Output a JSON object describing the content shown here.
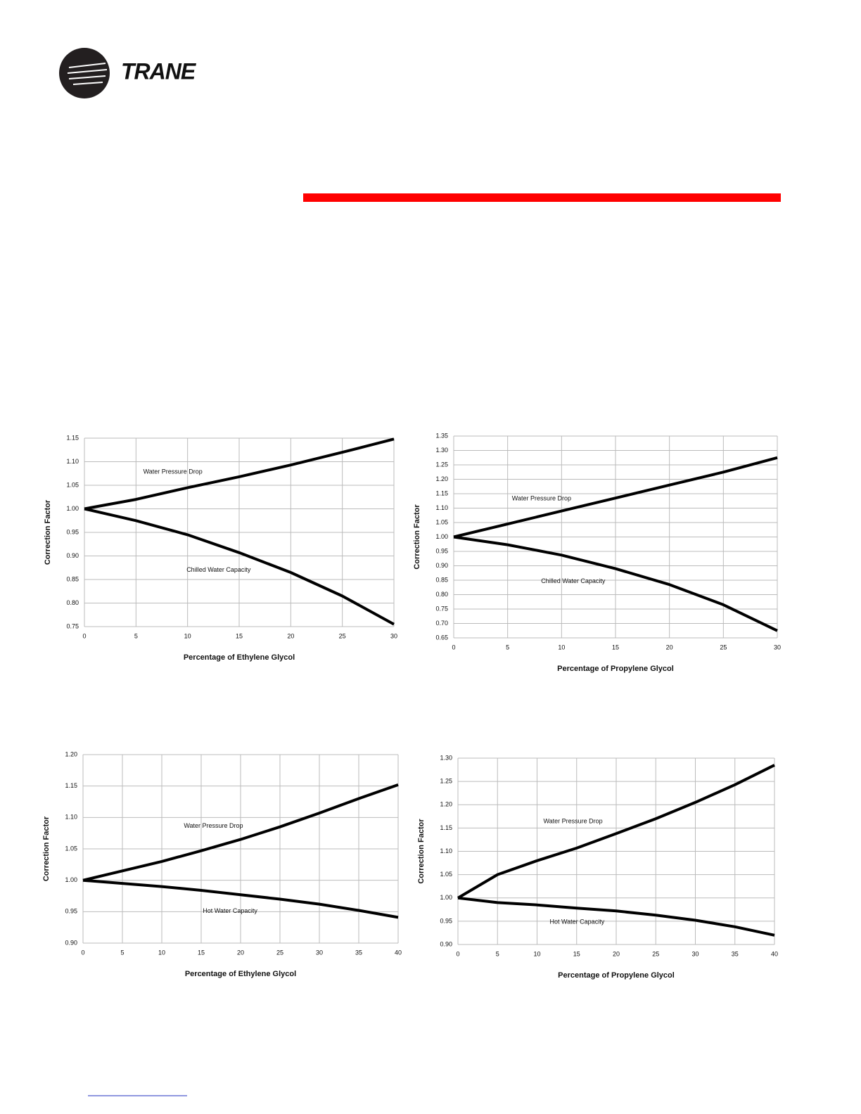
{
  "header": {
    "logo": "TRANE"
  },
  "chart_data": [
    {
      "type": "line",
      "x_label": "Percentage of Ethylene Glycol",
      "y_label": "Correction Factor",
      "x": [
        0,
        5,
        10,
        15,
        20,
        25,
        30
      ],
      "xlim": [
        0,
        30
      ],
      "xticks": [
        0,
        5,
        10,
        15,
        20,
        25,
        30
      ],
      "ylim": [
        0.75,
        1.15
      ],
      "yticks": [
        0.75,
        {
          "value": 0.8,
          "label": "0.80"
        },
        0.85,
        {
          "value": 0.9,
          "label": "0.90"
        },
        0.95,
        {
          "value": 1,
          "label": "1.00"
        },
        1.05,
        {
          "value": 1.1,
          "label": "1.10"
        },
        1.15
      ],
      "grid": true,
      "series": [
        {
          "name": "Water Pressure Drop",
          "color": "#000000",
          "values": [
            1.0,
            1.02,
            1.045,
            1.068,
            1.093,
            1.12,
            1.148
          ]
        },
        {
          "name": "Chilled Water Capacity",
          "color": "#000000",
          "values": [
            1.0,
            0.975,
            0.945,
            0.907,
            0.865,
            0.815,
            0.755
          ]
        }
      ]
    },
    {
      "type": "line",
      "x_label": "Percentage of Propylene Glycol",
      "y_label": "Correction Factor",
      "x": [
        0,
        5,
        10,
        15,
        20,
        25,
        30
      ],
      "xlim": [
        0,
        30
      ],
      "xticks": [
        0,
        5,
        10,
        15,
        20,
        25,
        30
      ],
      "ylim": [
        0.65,
        1.35
      ],
      "yticks": [
        0.65,
        {
          "value": 0.7,
          "label": "0.70"
        },
        0.75,
        {
          "value": 0.8,
          "label": "0.80"
        },
        0.85,
        {
          "value": 0.9,
          "label": "0.90"
        },
        0.95,
        {
          "value": 1,
          "label": "1.00"
        },
        1.05,
        {
          "value": 1.1,
          "label": "1.10"
        },
        1.15,
        {
          "value": 1.2,
          "label": "1.20"
        },
        1.25,
        {
          "value": 1.3,
          "label": "1.30"
        },
        1.35
      ],
      "grid": true,
      "series": [
        {
          "name": "Water Pressure Drop",
          "color": "#000000",
          "values": [
            1.0,
            1.045,
            1.09,
            1.135,
            1.18,
            1.225,
            1.275
          ]
        },
        {
          "name": "Chilled Water Capacity",
          "color": "#000000",
          "values": [
            1.0,
            0.973,
            0.937,
            0.89,
            0.835,
            0.765,
            0.675
          ]
        }
      ]
    },
    {
      "type": "line",
      "x_label": "Percentage of Ethylene Glycol",
      "y_label": "Correction Factor",
      "x": [
        0,
        5,
        10,
        15,
        20,
        25,
        30,
        35,
        40
      ],
      "xlim": [
        0,
        40
      ],
      "xticks": [
        0,
        5,
        10,
        15,
        20,
        25,
        30,
        35,
        40
      ],
      "ylim": [
        0.9,
        1.2
      ],
      "yticks": [
        {
          "value": 0.9,
          "label": "0.90"
        },
        0.95,
        {
          "value": 1,
          "label": "1.00"
        },
        1.05,
        {
          "value": 1.1,
          "label": "1.10"
        },
        1.15,
        {
          "value": 1.2,
          "label": "1.20"
        }
      ],
      "grid": true,
      "series": [
        {
          "name": "Water Pressure Drop",
          "color": "#000000",
          "values": [
            1.0,
            1.015,
            1.03,
            1.047,
            1.065,
            1.085,
            1.107,
            1.13,
            1.152
          ]
        },
        {
          "name": "Hot Water Capacity",
          "color": "#000000",
          "values": [
            1.0,
            0.995,
            0.99,
            0.984,
            0.977,
            0.97,
            0.962,
            0.952,
            0.941
          ]
        }
      ]
    },
    {
      "type": "line",
      "x_label": "Percentage of Propylene Glycol",
      "y_label": "Correction Factor",
      "x": [
        0,
        5,
        10,
        15,
        20,
        25,
        30,
        35,
        40
      ],
      "xlim": [
        0,
        40
      ],
      "xticks": [
        0,
        5,
        10,
        15,
        20,
        25,
        30,
        35,
        40
      ],
      "ylim": [
        0.9,
        1.3
      ],
      "yticks": [
        {
          "value": 0.9,
          "label": "0.90"
        },
        0.95,
        {
          "value": 1,
          "label": "1.00"
        },
        1.05,
        {
          "value": 1.1,
          "label": "1.10"
        },
        1.15,
        {
          "value": 1.2,
          "label": "1.20"
        },
        1.25,
        {
          "value": 1.3,
          "label": "1.30"
        }
      ],
      "grid": true,
      "series": [
        {
          "name": "Water Pressure Drop",
          "color": "#000000",
          "values": [
            1.0,
            1.05,
            1.08,
            1.107,
            1.138,
            1.17,
            1.205,
            1.243,
            1.285
          ]
        },
        {
          "name": "Hot Water Capacity",
          "color": "#000000",
          "values": [
            1.0,
            0.99,
            0.985,
            0.978,
            0.972,
            0.963,
            0.952,
            0.938,
            0.92
          ]
        }
      ]
    }
  ]
}
